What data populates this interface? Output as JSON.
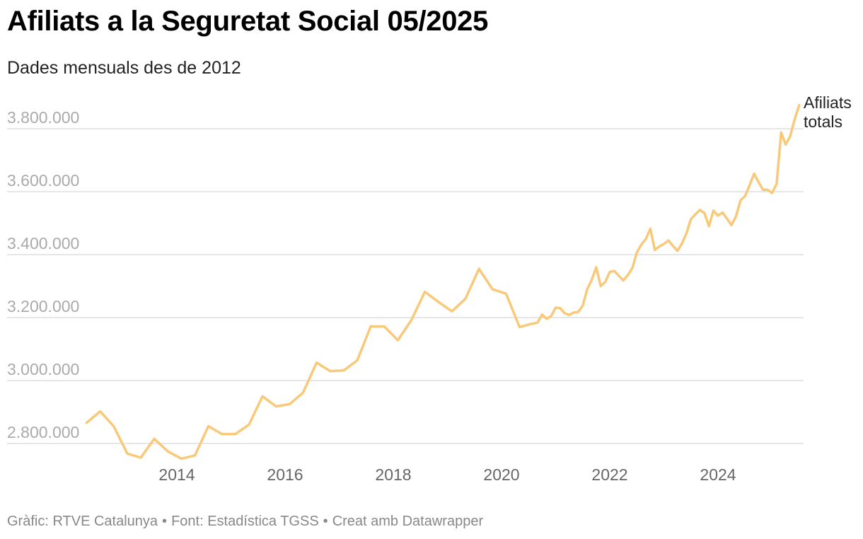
{
  "title": "Afiliats a la Seguretat Social 05/2025",
  "subtitle": "Dades mensuals des de 2012",
  "footer": {
    "graphic": "Gràfic: RTVE Catalunya",
    "source": "Font: Estadística TGSS",
    "tool": "Creat amb Datawrapper"
  },
  "colors": {
    "line": "#f9c97a",
    "grid": "#dddddd",
    "axis_text": "#aaaaaa"
  },
  "chart_data": {
    "type": "line",
    "ylim": [
      2800000,
      3800000
    ],
    "y_ticks": [
      2800000,
      3000000,
      3200000,
      3400000,
      3600000,
      3800000
    ],
    "y_tick_labels": [
      "2.800.000",
      "3.000.000",
      "3.200.000",
      "3.400.000",
      "3.600.000",
      "3.800.000"
    ],
    "x_ticks": [
      2014,
      2016,
      2018,
      2020,
      2022,
      2024
    ],
    "x_tick_labels": [
      "2014",
      "2016",
      "2018",
      "2020",
      "2022",
      "2024"
    ],
    "grid": true,
    "series": [
      {
        "label": "Afiliats totals",
        "label_lines": [
          "Afiliats",
          "totals"
        ],
        "points": [
          [
            "2012-05",
            2866000
          ],
          [
            "2012-08",
            2902000
          ],
          [
            "2012-11",
            2855000
          ],
          [
            "2013-02",
            2768000
          ],
          [
            "2013-05",
            2755000
          ],
          [
            "2013-08",
            2815000
          ],
          [
            "2013-11",
            2775000
          ],
          [
            "2014-02",
            2752000
          ],
          [
            "2014-05",
            2762000
          ],
          [
            "2014-08",
            2855000
          ],
          [
            "2014-11",
            2830000
          ],
          [
            "2015-02",
            2830000
          ],
          [
            "2015-05",
            2860000
          ],
          [
            "2015-08",
            2950000
          ],
          [
            "2015-11",
            2918000
          ],
          [
            "2016-02",
            2925000
          ],
          [
            "2016-05",
            2962000
          ],
          [
            "2016-08",
            3057000
          ],
          [
            "2016-11",
            3030000
          ],
          [
            "2017-02",
            3032000
          ],
          [
            "2017-05",
            3064000
          ],
          [
            "2017-08",
            3172000
          ],
          [
            "2017-11",
            3172000
          ],
          [
            "2018-02",
            3128000
          ],
          [
            "2018-05",
            3192000
          ],
          [
            "2018-08",
            3282000
          ],
          [
            "2018-11",
            3250000
          ],
          [
            "2019-02",
            3220000
          ],
          [
            "2019-05",
            3260000
          ],
          [
            "2019-08",
            3355000
          ],
          [
            "2019-11",
            3290000
          ],
          [
            "2020-02",
            3276000
          ],
          [
            "2020-05",
            3170000
          ],
          [
            "2020-07",
            3178000
          ],
          [
            "2020-09",
            3184000
          ],
          [
            "2020-10",
            3210000
          ],
          [
            "2020-11",
            3196000
          ],
          [
            "2020-12",
            3205000
          ],
          [
            "2021-01",
            3232000
          ],
          [
            "2021-02",
            3230000
          ],
          [
            "2021-03",
            3214000
          ],
          [
            "2021-04",
            3208000
          ],
          [
            "2021-05",
            3216000
          ],
          [
            "2021-06",
            3218000
          ],
          [
            "2021-07",
            3238000
          ],
          [
            "2021-08",
            3290000
          ],
          [
            "2021-09",
            3320000
          ],
          [
            "2021-10",
            3360000
          ],
          [
            "2021-11",
            3300000
          ],
          [
            "2021-12",
            3313000
          ],
          [
            "2022-01",
            3345000
          ],
          [
            "2022-02",
            3348000
          ],
          [
            "2022-03",
            3333000
          ],
          [
            "2022-04",
            3318000
          ],
          [
            "2022-05",
            3335000
          ],
          [
            "2022-06",
            3357000
          ],
          [
            "2022-07",
            3407000
          ],
          [
            "2022-08",
            3432000
          ],
          [
            "2022-09",
            3450000
          ],
          [
            "2022-10",
            3482000
          ],
          [
            "2022-11",
            3415000
          ],
          [
            "2022-12",
            3426000
          ],
          [
            "2023-01",
            3434000
          ],
          [
            "2023-02",
            3445000
          ],
          [
            "2023-03",
            3428000
          ],
          [
            "2023-04",
            3412000
          ],
          [
            "2023-05",
            3435000
          ],
          [
            "2023-06",
            3468000
          ],
          [
            "2023-07",
            3513000
          ],
          [
            "2023-08",
            3528000
          ],
          [
            "2023-09",
            3542000
          ],
          [
            "2023-10",
            3532000
          ],
          [
            "2023-11",
            3490000
          ],
          [
            "2023-12",
            3540000
          ],
          [
            "2024-01",
            3524000
          ],
          [
            "2024-02",
            3534000
          ],
          [
            "2024-03",
            3514000
          ],
          [
            "2024-04",
            3494000
          ],
          [
            "2024-05",
            3522000
          ],
          [
            "2024-06",
            3573000
          ],
          [
            "2024-07",
            3586000
          ],
          [
            "2024-08",
            3620000
          ],
          [
            "2024-09",
            3657000
          ],
          [
            "2024-10",
            3630000
          ],
          [
            "2024-11",
            3606000
          ],
          [
            "2024-12",
            3606000
          ],
          [
            "2025-01",
            3596000
          ],
          [
            "2025-02",
            3625000
          ],
          [
            "2025-03",
            3788000
          ],
          [
            "2025-04",
            3750000
          ],
          [
            "2025-05",
            3776000
          ],
          [
            "2025-06",
            3830000
          ],
          [
            "2025-07",
            3875000
          ]
        ]
      }
    ]
  }
}
